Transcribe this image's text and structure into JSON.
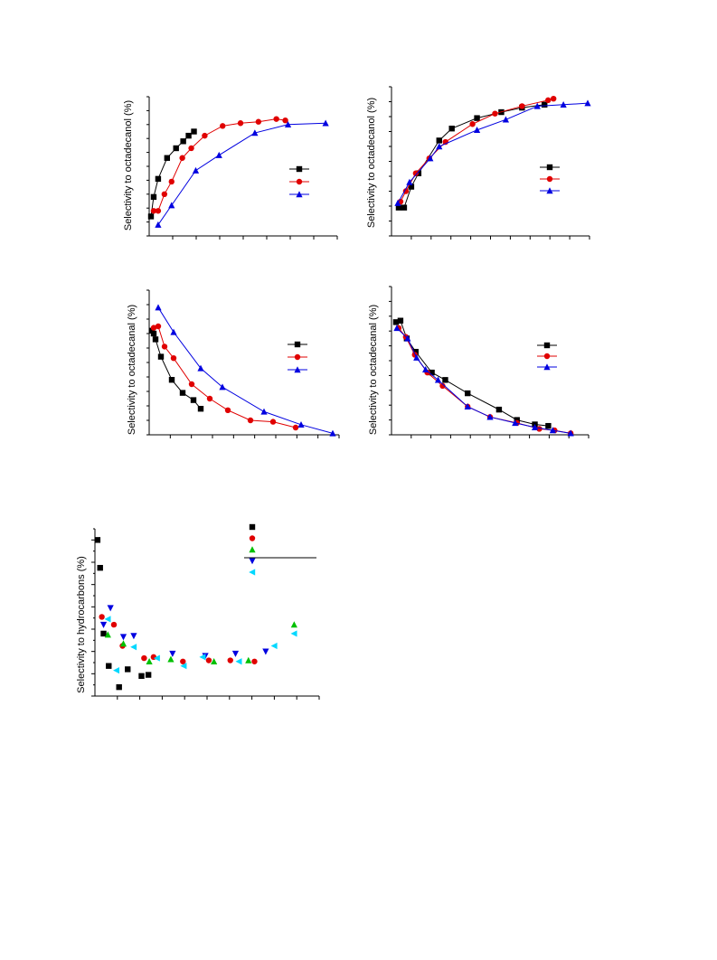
{
  "chart_data": [
    {
      "type": "line",
      "ylabel": "Selectivity to octadecanol (%)",
      "xlim": [
        0,
        210
      ],
      "ylim": [
        0,
        100
      ],
      "legend_position": "right",
      "series": [
        {
          "color": "#000000",
          "marker": "square",
          "x": [
            2,
            5,
            10,
            20,
            30,
            38,
            44,
            50
          ],
          "y": [
            14,
            28,
            41,
            56,
            63,
            68,
            72,
            75
          ]
        },
        {
          "color": "#e00000",
          "marker": "circle",
          "x": [
            5,
            10,
            17,
            25,
            37,
            47,
            62,
            82,
            102,
            122,
            142,
            152
          ],
          "y": [
            18,
            18,
            30,
            39,
            56,
            63,
            72,
            79,
            81,
            82,
            84,
            83
          ]
        },
        {
          "color": "#0000e0",
          "marker": "triangle",
          "x": [
            10,
            25,
            52,
            78,
            118,
            155,
            197
          ],
          "y": [
            8,
            22,
            47,
            58,
            74,
            80,
            81
          ]
        }
      ]
    },
    {
      "type": "line",
      "ylabel": "Selectivity to octadecanol (%)",
      "xlim": [
        0,
        220
      ],
      "ylim": [
        0,
        100
      ],
      "legend_position": "right",
      "series": [
        {
          "color": "#000000",
          "marker": "square",
          "x": [
            8,
            14,
            22,
            30,
            53,
            67,
            95,
            122,
            145,
            170
          ],
          "y": [
            19,
            19,
            33,
            42,
            64,
            72,
            79,
            83,
            86,
            88
          ]
        },
        {
          "color": "#e00000",
          "marker": "circle",
          "x": [
            10,
            16,
            27,
            42,
            60,
            90,
            115,
            145,
            174,
            180
          ],
          "y": [
            23,
            30,
            42,
            52,
            63,
            75,
            82,
            87,
            91,
            92
          ]
        },
        {
          "color": "#0000e0",
          "marker": "triangle",
          "x": [
            7,
            20,
            43,
            53,
            95,
            127,
            162,
            191,
            218
          ],
          "y": [
            22,
            36,
            52,
            60,
            71,
            78,
            87,
            88,
            89
          ]
        }
      ]
    },
    {
      "type": "line",
      "ylabel": "Selectivity to octadecanal (%)",
      "xlim": [
        0,
        210
      ],
      "ylim": [
        0,
        100
      ],
      "legend_position": "right",
      "series": [
        {
          "color": "#000000",
          "marker": "square",
          "x": [
            3,
            5,
            7,
            13,
            25,
            37,
            49,
            57
          ],
          "y": [
            72,
            70,
            66,
            54,
            38,
            29,
            24,
            18
          ]
        },
        {
          "color": "#e00000",
          "marker": "circle",
          "x": [
            5,
            10,
            17,
            27,
            47,
            67,
            87,
            112,
            137,
            162
          ],
          "y": [
            74,
            75,
            61,
            53,
            35,
            25,
            17,
            10,
            9,
            5
          ]
        },
        {
          "color": "#0000e0",
          "marker": "triangle",
          "x": [
            10,
            27,
            57,
            81,
            127,
            168,
            203
          ],
          "y": [
            88,
            71,
            46,
            33,
            16,
            7,
            1
          ]
        }
      ]
    },
    {
      "type": "line",
      "ylabel": "Selectivity to octadecanal (%)",
      "xlim": [
        0,
        220
      ],
      "ylim": [
        0,
        100
      ],
      "legend_position": "right",
      "series": [
        {
          "color": "#000000",
          "marker": "square",
          "x": [
            5,
            10,
            17,
            27,
            45,
            60,
            85,
            120,
            140,
            160,
            175
          ],
          "y": [
            76,
            77,
            65,
            56,
            42,
            37,
            28,
            17,
            10,
            7,
            6
          ]
        },
        {
          "color": "#e00000",
          "marker": "circle",
          "x": [
            8,
            16,
            26,
            40,
            57,
            85,
            110,
            140,
            165,
            182,
            200
          ],
          "y": [
            72,
            66,
            54,
            42,
            33,
            19,
            12,
            8,
            4,
            3,
            1
          ]
        },
        {
          "color": "#0000e0",
          "marker": "triangle",
          "x": [
            6,
            18,
            28,
            38,
            52,
            85,
            110,
            138,
            160,
            180,
            200
          ],
          "y": [
            72,
            65,
            52,
            44,
            37,
            19,
            12,
            8,
            5,
            3,
            1
          ]
        }
      ]
    },
    {
      "type": "scatter",
      "ylabel": "Selectivity to hydrocarbons (%)",
      "xlim": [
        0,
        260
      ],
      "ylim": [
        0,
        15
      ],
      "legend_position": "top-right",
      "series": [
        {
          "color": "#000000",
          "marker": "square",
          "x": [
            3,
            6,
            10,
            16,
            28,
            38,
            54,
            62
          ],
          "y": [
            14.0,
            11.5,
            5.6,
            2.7,
            0.8,
            2.4,
            1.8,
            1.9
          ]
        },
        {
          "color": "#e00000",
          "marker": "circle",
          "x": [
            8,
            22,
            32,
            57,
            68,
            102,
            132,
            157,
            185
          ],
          "y": [
            7.1,
            6.4,
            4.5,
            3.4,
            3.5,
            3.1,
            3.2,
            3.2,
            3.1
          ]
        },
        {
          "color": "#00c000",
          "marker": "triangle-up",
          "x": [
            15,
            33,
            63,
            88,
            138,
            178,
            231
          ],
          "y": [
            5.5,
            4.7,
            3.1,
            3.3,
            3.1,
            3.2,
            6.4
          ]
        },
        {
          "color": "#0000e0",
          "marker": "triangle-down",
          "x": [
            10,
            18,
            33,
            45,
            90,
            128,
            163,
            198
          ],
          "y": [
            6.4,
            7.9,
            5.3,
            5.4,
            3.8,
            3.6,
            3.8,
            4.0
          ]
        },
        {
          "color": "#00d8ff",
          "marker": "triangle-left",
          "x": [
            15,
            25,
            45,
            72,
            103,
            125,
            167,
            208,
            231
          ],
          "y": [
            6.9,
            2.3,
            4.4,
            3.4,
            2.7,
            3.5,
            3.1,
            4.5,
            5.6
          ]
        }
      ]
    }
  ]
}
